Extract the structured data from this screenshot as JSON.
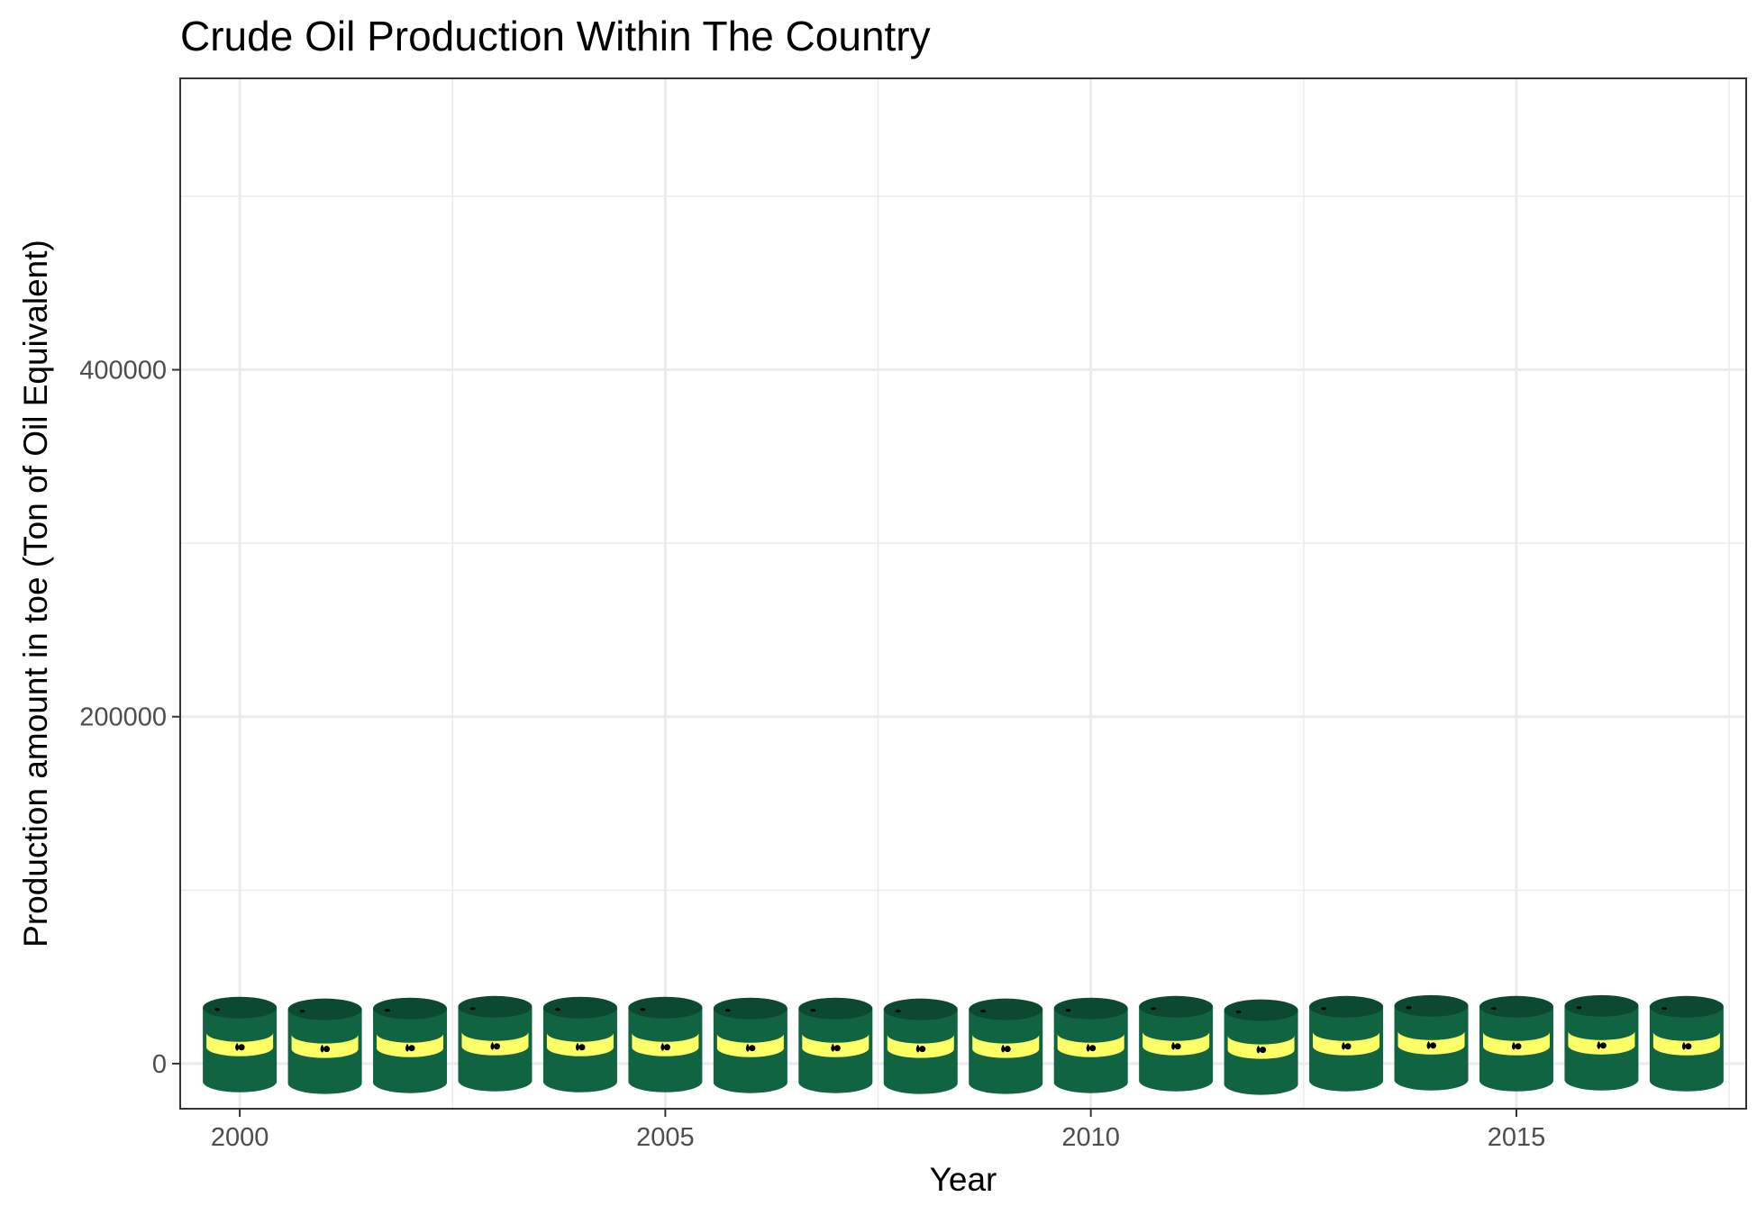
{
  "chart_data": {
    "type": "scatter",
    "marker": "oil-barrel-icon",
    "title": "Crude Oil Production Within The Country",
    "xlabel": "Year",
    "ylabel": "Production amount in toe (Ton of Oil Equivalent)",
    "x": [
      2000,
      2001,
      2002,
      2003,
      2004,
      2005,
      2006,
      2007,
      2008,
      2009,
      2010,
      2011,
      2012,
      2013,
      2014,
      2015,
      2016,
      2017
    ],
    "series": [
      {
        "values": [
          11000,
          10000,
          10500,
          11500,
          11000,
          11000,
          10500,
          10500,
          10000,
          10000,
          10500,
          11500,
          9500,
          11500,
          12000,
          11500,
          12000,
          11500
        ]
      }
    ],
    "xlim": [
      1999.3,
      2017.7
    ],
    "ylim": [
      -26000,
      568000
    ],
    "x_ticks": [
      2000,
      2005,
      2010,
      2015
    ],
    "x_tick_labels": [
      "2000",
      "2005",
      "2010",
      "2015"
    ],
    "x_minor_ticks": [
      2002.5,
      2007.5,
      2012.5,
      2017.5
    ],
    "y_ticks": [
      0,
      200000,
      400000
    ],
    "y_tick_labels": [
      "0",
      "200000",
      "400000"
    ],
    "y_minor_ticks": [
      100000,
      300000,
      500000
    ],
    "grid": true,
    "legend": "none",
    "colors": {
      "barrel_body": "#106442",
      "barrel_top": "#0b4a30",
      "barrel_band": "#ffff66",
      "grid": "#ebebeb",
      "panel_border": "#333333"
    }
  }
}
